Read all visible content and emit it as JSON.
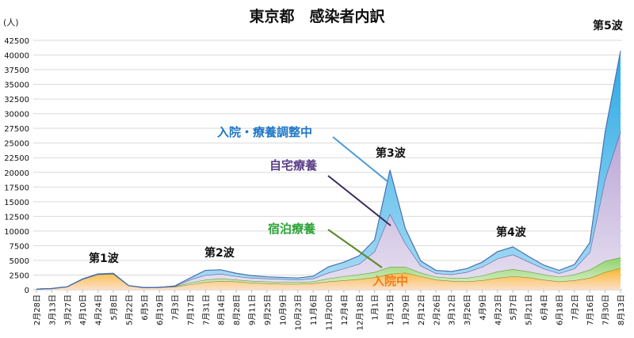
{
  "chart_data": {
    "type": "area",
    "stacked": true,
    "title": "東京都　感染者内訳",
    "ylabel": "(人)",
    "ylim": [
      0,
      42500
    ],
    "yticks": [
      0,
      2500,
      5000,
      7500,
      10000,
      12500,
      15000,
      17500,
      20000,
      22500,
      25000,
      27500,
      30000,
      32500,
      35000,
      37500,
      40000,
      42500
    ],
    "categories": [
      "2月28日",
      "3月13日",
      "3月27日",
      "4月10日",
      "4月24日",
      "5月8日",
      "5月22日",
      "6月5日",
      "6月19日",
      "7月3日",
      "7月17日",
      "7月31日",
      "8月14日",
      "8月28日",
      "9月11日",
      "9月25日",
      "10月9日",
      "10月23日",
      "11月6日",
      "11月20日",
      "12月4日",
      "12月18日",
      "1月1日",
      "1月15日",
      "1月29日",
      "2月12日",
      "2月26日",
      "3月12日",
      "3月26日",
      "4月9日",
      "4月23日",
      "5月7日",
      "5月21日",
      "6月4日",
      "6月18日",
      "7月2日",
      "7月16日",
      "7月30日",
      "8月13日"
    ],
    "series": [
      {
        "name": "入院中",
        "color": "#f07c1a",
        "values": [
          100,
          200,
          500,
          1800,
          2600,
          2700,
          700,
          350,
          400,
          500,
          900,
          1300,
          1500,
          1400,
          1200,
          1100,
          1000,
          1000,
          1100,
          1400,
          1600,
          1800,
          2100,
          2700,
          2900,
          2300,
          1700,
          1500,
          1400,
          1600,
          2000,
          2300,
          2100,
          1700,
          1400,
          1600,
          2000,
          3000,
          3700
        ]
      },
      {
        "name": "宿泊療養",
        "color": "#3aa33a",
        "values": [
          0,
          0,
          0,
          0,
          0,
          0,
          0,
          0,
          0,
          50,
          300,
          400,
          400,
          300,
          300,
          300,
          300,
          300,
          300,
          500,
          700,
          800,
          900,
          1200,
          1000,
          600,
          500,
          500,
          600,
          800,
          1100,
          1200,
          1000,
          900,
          800,
          1000,
          1400,
          1900,
          1800
        ]
      },
      {
        "name": "自宅療養",
        "color": "#5b3f86",
        "values": [
          0,
          0,
          0,
          0,
          50,
          50,
          0,
          0,
          0,
          50,
          500,
          800,
          800,
          600,
          500,
          500,
          500,
          400,
          500,
          1000,
          1300,
          1800,
          3500,
          9000,
          4000,
          1200,
          600,
          600,
          1000,
          1500,
          2200,
          2500,
          1700,
          1000,
          600,
          1000,
          3000,
          14000,
          21500
        ]
      },
      {
        "name": "入院・療養調整中",
        "color": "#1f77c8",
        "values": [
          0,
          0,
          0,
          50,
          50,
          50,
          0,
          0,
          0,
          50,
          300,
          800,
          700,
          500,
          400,
          300,
          300,
          300,
          400,
          1000,
          1100,
          1400,
          2000,
          7500,
          2500,
          800,
          500,
          500,
          600,
          800,
          1200,
          1300,
          900,
          600,
          500,
          700,
          1600,
          8000,
          13700
        ]
      }
    ],
    "annotations": [
      "第1波",
      "第2波",
      "第3波",
      "第4波",
      "第5波"
    ],
    "grid": true
  }
}
